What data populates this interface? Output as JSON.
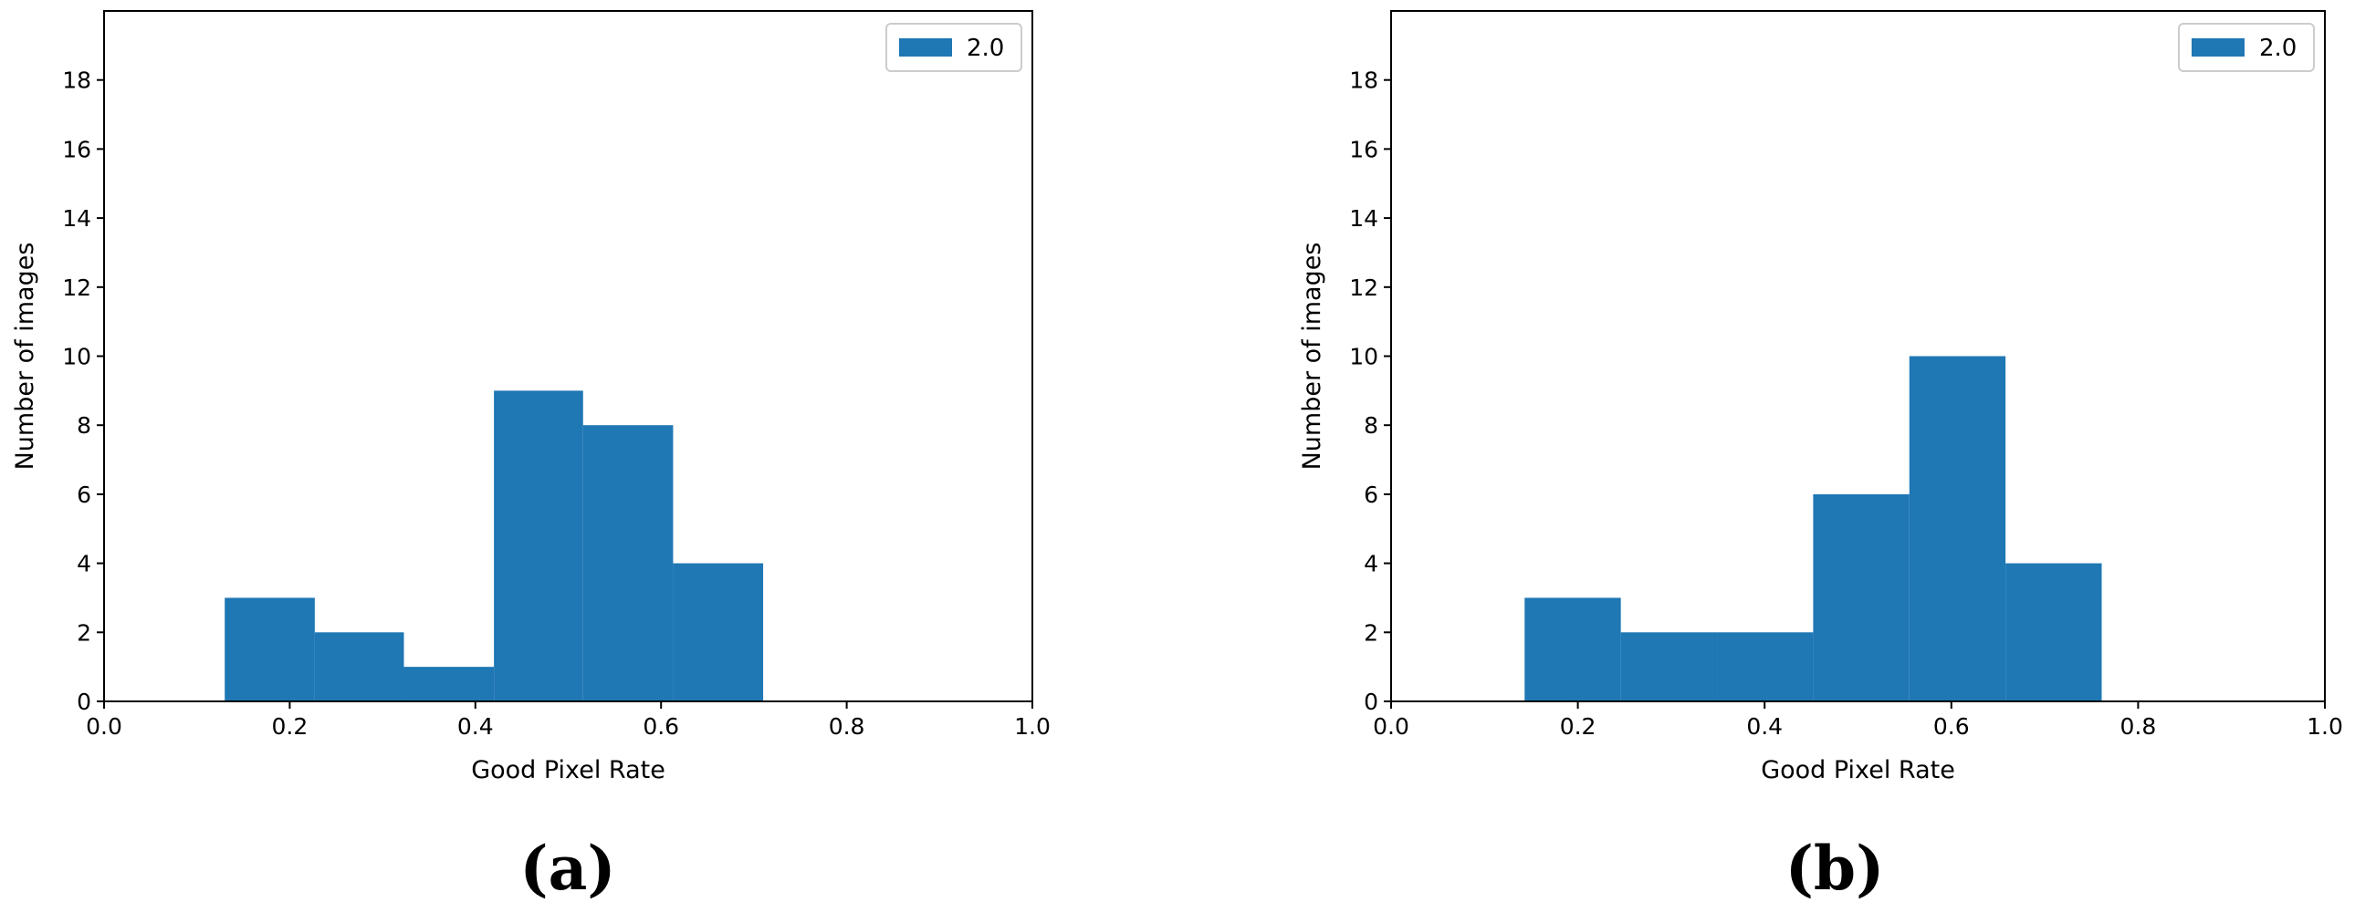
{
  "chart_data": [
    {
      "type": "bar",
      "panel_label": "(a)",
      "xlabel": "Good Pixel Rate",
      "ylabel": "Number of images",
      "xlim": [
        0.0,
        1.0
      ],
      "ylim": [
        0,
        20
      ],
      "xticks": [
        "0.0",
        "0.2",
        "0.4",
        "0.6",
        "0.8",
        "1.0"
      ],
      "yticks": [
        "0",
        "2",
        "4",
        "6",
        "8",
        "10",
        "12",
        "14",
        "16",
        "18"
      ],
      "legend": {
        "entries": [
          "2.0"
        ],
        "placement": "top-right"
      },
      "grid": false,
      "color": "#1f77b4",
      "bins": [
        {
          "x0": 0.13,
          "x1": 0.227,
          "count": 3
        },
        {
          "x0": 0.227,
          "x1": 0.323,
          "count": 2
        },
        {
          "x0": 0.323,
          "x1": 0.42,
          "count": 1
        },
        {
          "x0": 0.42,
          "x1": 0.516,
          "count": 9
        },
        {
          "x0": 0.516,
          "x1": 0.613,
          "count": 8
        },
        {
          "x0": 0.613,
          "x1": 0.71,
          "count": 4
        }
      ]
    },
    {
      "type": "bar",
      "panel_label": "(b)",
      "xlabel": "Good Pixel Rate",
      "ylabel": "Number of images",
      "xlim": [
        0.0,
        1.0
      ],
      "ylim": [
        0,
        20
      ],
      "xticks": [
        "0.0",
        "0.2",
        "0.4",
        "0.6",
        "0.8",
        "1.0"
      ],
      "yticks": [
        "0",
        "2",
        "4",
        "6",
        "8",
        "10",
        "12",
        "14",
        "16",
        "18"
      ],
      "legend": {
        "entries": [
          "2.0"
        ],
        "placement": "top-right"
      },
      "grid": false,
      "color": "#1f77b4",
      "bins": [
        {
          "x0": 0.143,
          "x1": 0.246,
          "count": 3
        },
        {
          "x0": 0.246,
          "x1": 0.349,
          "count": 2
        },
        {
          "x0": 0.349,
          "x1": 0.452,
          "count": 2
        },
        {
          "x0": 0.452,
          "x1": 0.555,
          "count": 6
        },
        {
          "x0": 0.555,
          "x1": 0.658,
          "count": 10
        },
        {
          "x0": 0.658,
          "x1": 0.761,
          "count": 4
        }
      ]
    }
  ]
}
